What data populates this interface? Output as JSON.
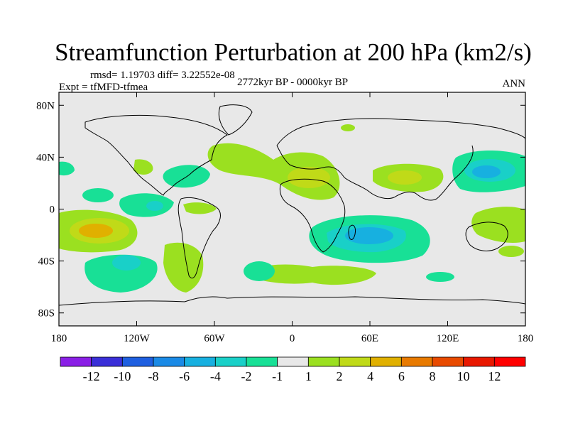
{
  "chart_data": {
    "type": "heatmap",
    "title": "Streamfunction Perturbation at 200 hPa (km2/s)",
    "stats": "rmsd= 1.19703 diff= 3.22552e-08",
    "experiment": "Expt = tfMFD-tfmea",
    "period": "2772kyr BP - 0000kyr BP",
    "season": "ANN",
    "x_ticks": [
      "180",
      "120W",
      "60W",
      "0",
      "60E",
      "120E",
      "180"
    ],
    "y_ticks": [
      "80N",
      "40N",
      "0",
      "40S",
      "80S"
    ],
    "xlim": [
      -180,
      180
    ],
    "ylim": [
      -90,
      90
    ],
    "colorbar": {
      "labels": [
        "-12",
        "-10",
        "-8",
        "-6",
        "-4",
        "-2",
        "-1",
        "1",
        "2",
        "4",
        "6",
        "8",
        "10",
        "12"
      ],
      "colors": [
        "#8a1fe6",
        "#3a2fd8",
        "#1e5fe0",
        "#1a8ae6",
        "#17b0e0",
        "#19d0c8",
        "#18e096",
        "#e8e8e8",
        "#9be020",
        "#c0da18",
        "#e0b000",
        "#e87a00",
        "#e84a00",
        "#e81800",
        "#ff0000"
      ]
    },
    "fields": [
      {
        "region": "NE Atlantic / W Europe",
        "lon": -20,
        "lat": 35,
        "value": 2
      },
      {
        "region": "North Africa / Sahara",
        "lon": 10,
        "lat": 25,
        "value": 4
      },
      {
        "region": "Central Asia",
        "lon": 70,
        "lat": 25,
        "value": 2
      },
      {
        "region": "NW Pacific",
        "lon": 155,
        "lat": 30,
        "value": -4
      },
      {
        "region": "Tropical South Pacific",
        "lon": -150,
        "lat": -15,
        "value": 6
      },
      {
        "region": "South Indian Ocean / Madagascar",
        "lon": 45,
        "lat": -15,
        "value": -4
      },
      {
        "region": "SE Pacific",
        "lon": -115,
        "lat": -45,
        "value": -4
      },
      {
        "region": "Southern Ocean (Atlantic)",
        "lon": 0,
        "lat": -50,
        "value": 1
      },
      {
        "region": "Caribbean / Central America",
        "lon": -75,
        "lat": 30,
        "value": -2
      }
    ]
  }
}
